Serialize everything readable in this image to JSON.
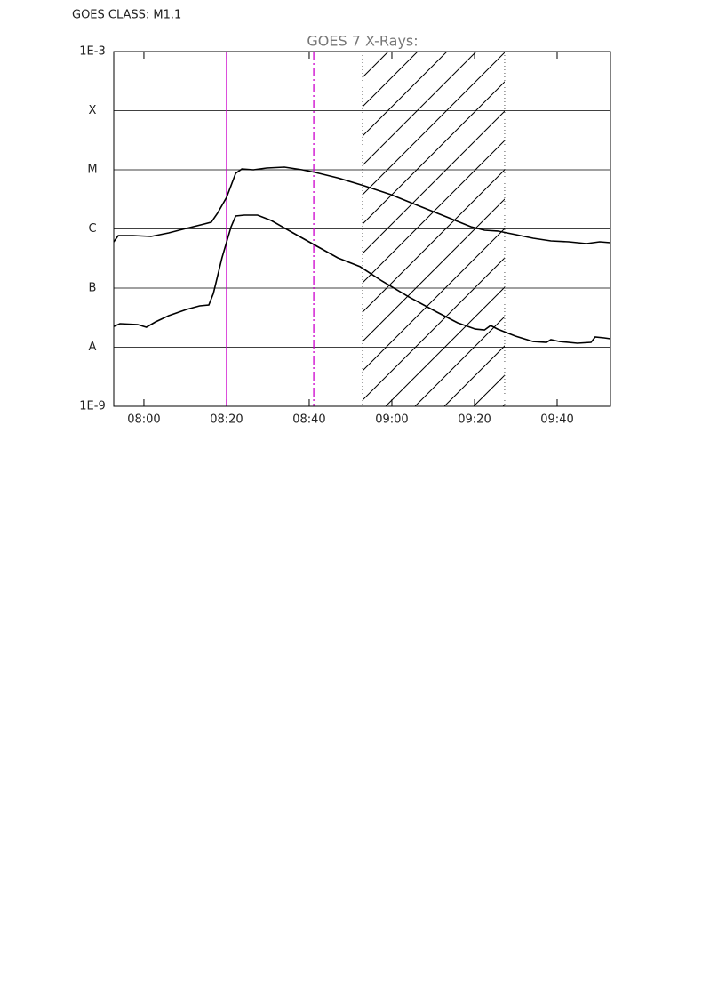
{
  "chart_data": {
    "type": "line",
    "header": "GOES CLASS: M1.1",
    "title": "GOES 7 X-Rays:",
    "log_y": true,
    "grid": true,
    "xlim": [
      472.7,
      592.9
    ],
    "xticks": [
      {
        "value": 480,
        "label": "08:00"
      },
      {
        "value": 500,
        "label": "08:20"
      },
      {
        "value": 520,
        "label": "08:40"
      },
      {
        "value": 540,
        "label": "09:00"
      },
      {
        "value": 560,
        "label": "09:20"
      },
      {
        "value": 580,
        "label": "09:40"
      }
    ],
    "ylim": [
      1e-09,
      0.001
    ],
    "yticks": [
      {
        "value": 1e-09,
        "label": "1E-9"
      },
      {
        "value": 1e-08,
        "label": "A"
      },
      {
        "value": 1e-07,
        "label": "B"
      },
      {
        "value": 1e-06,
        "label": "C"
      },
      {
        "value": 1e-05,
        "label": "M"
      },
      {
        "value": 0.0001,
        "label": "X"
      },
      {
        "value": 0.001,
        "label": "1E-3"
      }
    ],
    "series": [
      {
        "color": "#000000",
        "x": [
          472.7,
          473.8,
          477.4,
          481.7,
          486.0,
          490.3,
          494.6,
          496.3,
          497.8,
          500.0,
          502.2,
          503.7,
          506.5,
          509.7,
          514.0,
          518.3,
          521.5,
          526.9,
          533.3,
          539.8,
          546.2,
          552.7,
          559.1,
          562.4,
          565.6,
          569.9,
          574.2,
          578.5,
          582.8,
          587.1,
          590.3,
          592.9
        ],
        "values": [
          6.05e-07,
          7.7e-07,
          7.7e-07,
          7.45e-07,
          8.55e-07,
          1.02e-06,
          1.21e-06,
          1.3e-06,
          1.83e-06,
          3.42e-06,
          8.7e-06,
          1.03e-05,
          1e-05,
          1.07e-05,
          1.11e-05,
          1e-05,
          9e-06,
          7.3e-06,
          5.36e-06,
          3.79e-06,
          2.5e-06,
          1.65e-06,
          1.09e-06,
          9.5e-07,
          9.2e-07,
          8e-07,
          6.95e-07,
          6.27e-07,
          6.05e-07,
          5.65e-07,
          6.05e-07,
          5.85e-07
        ]
      },
      {
        "color": "#000000",
        "x": [
          472.7,
          474.2,
          478.5,
          480.6,
          482.8,
          486.0,
          490.3,
          493.5,
          495.7,
          496.8,
          498.9,
          501.1,
          502.2,
          504.3,
          507.5,
          510.8,
          516.1,
          521.5,
          526.9,
          532.3,
          537.6,
          544.1,
          550.5,
          555.9,
          560.2,
          562.4,
          563.9,
          565.6,
          569.9,
          574.2,
          577.4,
          578.5,
          580.6,
          584.9,
          588.2,
          589.2,
          591.4,
          592.9
        ],
        "values": [
          2.25e-08,
          2.5e-08,
          2.42e-08,
          2.18e-08,
          2.68e-08,
          3.42e-08,
          4.36e-08,
          5e-08,
          5.18e-08,
          8.1e-08,
          3.24e-07,
          1.09e-06,
          1.65e-06,
          1.71e-06,
          1.71e-06,
          1.39e-06,
          8.55e-07,
          5.27e-07,
          3.24e-07,
          2.3e-07,
          1.32e-07,
          7.1e-08,
          4.06e-08,
          2.59e-08,
          2.03e-08,
          1.96e-08,
          2.33e-08,
          2.03e-08,
          1.54e-08,
          1.25e-08,
          1.21e-08,
          1.34e-08,
          1.25e-08,
          1.17e-08,
          1.21e-08,
          1.49e-08,
          1.44e-08,
          1.39e-08
        ]
      }
    ],
    "markers": [
      {
        "x": 500,
        "color": "#cc00cc",
        "style": "solid"
      },
      {
        "x": 521.1,
        "color": "#cc00cc",
        "style": "dashdot"
      }
    ],
    "shaded_region": {
      "x": [
        532.9,
        567.3
      ],
      "color": "#000000"
    }
  }
}
